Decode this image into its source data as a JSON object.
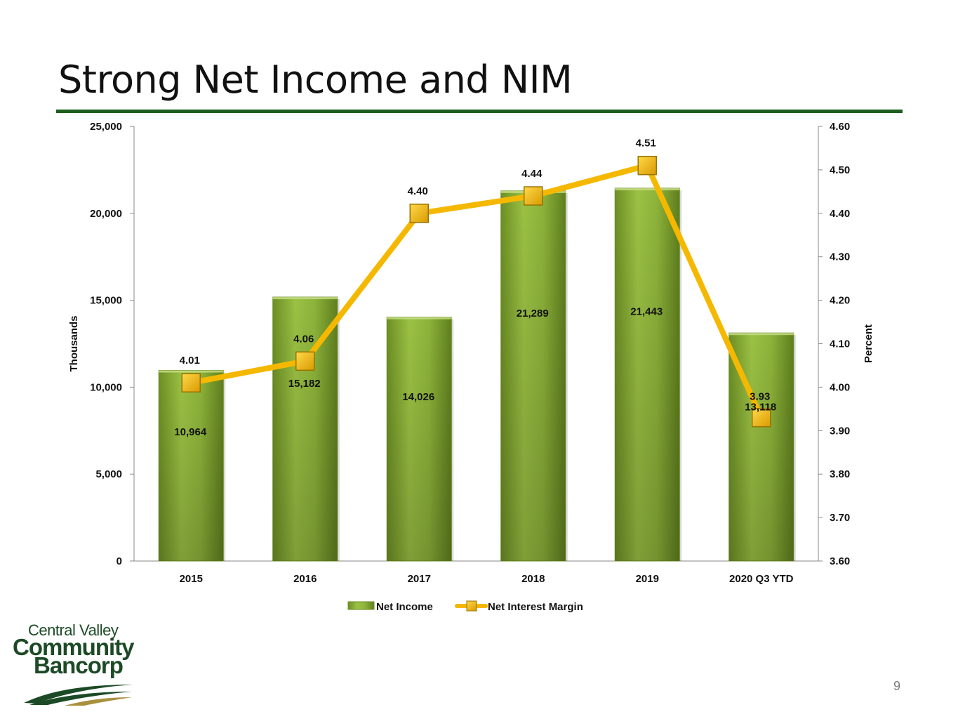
{
  "slide": {
    "title": "Strong Net Income and NIM",
    "page_number": "9"
  },
  "logo": {
    "line1": "Central Valley",
    "line2": "Community",
    "line3": "Bancorp",
    "colors": {
      "green": "#1d4a26",
      "gold": "#a9903e"
    }
  },
  "chart_data": {
    "type": "bar",
    "categories": [
      "2015",
      "2016",
      "2017",
      "2018",
      "2019",
      "2020 Q3 YTD"
    ],
    "series": [
      {
        "name": "Net Income",
        "type": "bar",
        "axis": "left",
        "values": [
          10964,
          15182,
          14026,
          21289,
          21443,
          13118
        ],
        "labels": [
          "10,964",
          "15,182",
          "14,026",
          "21,289",
          "21,443",
          "13,118"
        ],
        "color": "#8db33a"
      },
      {
        "name": "Net Interest Margin",
        "type": "line",
        "axis": "right",
        "values": [
          4.01,
          4.06,
          4.4,
          4.44,
          4.51,
          3.93
        ],
        "labels": [
          "4.01",
          "4.06",
          "4.40",
          "4.44",
          "4.51",
          "3.93"
        ],
        "color": "#f5b800"
      }
    ],
    "ylabel": "Thousands",
    "ylabel_right": "Percent",
    "ylim": [
      0,
      25000
    ],
    "ylim_right": [
      3.6,
      4.6
    ],
    "yticks": [
      0,
      5000,
      10000,
      15000,
      20000,
      25000
    ],
    "yticks_labels": [
      "0",
      "5,000",
      "10,000",
      "15,000",
      "20,000",
      "25,000"
    ],
    "yticks_right": [
      3.6,
      3.7,
      3.8,
      3.9,
      4.0,
      4.1,
      4.2,
      4.3,
      4.4,
      4.5,
      4.6
    ],
    "yticks_right_labels": [
      "3.60",
      "3.70",
      "3.80",
      "3.90",
      "4.00",
      "4.10",
      "4.20",
      "4.30",
      "4.40",
      "4.50",
      "4.60"
    ],
    "grid": false,
    "legend": "bottom"
  }
}
